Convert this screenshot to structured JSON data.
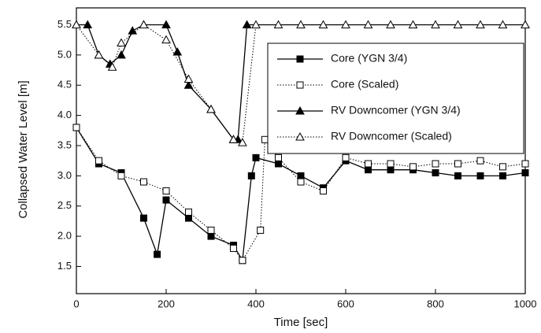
{
  "chart_data": {
    "type": "line",
    "xlabel": "Time [sec]",
    "ylabel": "Collapsed Water Level [m]",
    "xlim": [
      0,
      1000
    ],
    "xticks": [
      0,
      200,
      400,
      600,
      800,
      1000
    ],
    "ylim": [
      1.05,
      5.78
    ],
    "yticks": [
      1.5,
      {
        "value": 2,
        "label": "2.0"
      },
      2.5,
      {
        "value": 3,
        "label": "3.0"
      },
      3.5,
      {
        "value": 4,
        "label": "4.0"
      },
      4.5,
      {
        "value": 5,
        "label": "5.0"
      },
      5.5
    ],
    "legend": "upper right",
    "series": [
      {
        "name": "Core (YGN 3/4)",
        "color": "#000000",
        "dashed": false,
        "marker": "square",
        "filled": true,
        "x": [
          0,
          50,
          100,
          150,
          180,
          200,
          250,
          300,
          350,
          370,
          390,
          400,
          450,
          500,
          550,
          600,
          650,
          700,
          750,
          800,
          850,
          900,
          950,
          1000
        ],
        "values": [
          3.8,
          3.2,
          3.05,
          2.3,
          1.7,
          2.6,
          2.3,
          2.0,
          1.85,
          1.6,
          3.0,
          3.3,
          3.2,
          3.0,
          2.8,
          3.25,
          3.1,
          3.1,
          3.1,
          3.05,
          3.0,
          3.0,
          3.0,
          3.05
        ]
      },
      {
        "name": "Core (Scaled)",
        "color": "#000000",
        "dashed": true,
        "marker": "square",
        "filled": false,
        "x": [
          0,
          50,
          100,
          150,
          200,
          250,
          300,
          350,
          370,
          410,
          420,
          450,
          500,
          550,
          600,
          650,
          700,
          750,
          800,
          850,
          900,
          950,
          1000
        ],
        "values": [
          3.8,
          3.25,
          3.0,
          2.9,
          2.75,
          2.4,
          2.1,
          1.8,
          1.6,
          2.1,
          3.6,
          3.3,
          2.9,
          2.75,
          3.3,
          3.2,
          3.2,
          3.15,
          3.2,
          3.2,
          3.25,
          3.15,
          3.2
        ]
      },
      {
        "name": "RV Downcomer (YGN 3/4)",
        "color": "#000000",
        "dashed": false,
        "marker": "triangle",
        "filled": true,
        "x": [
          0,
          25,
          50,
          75,
          100,
          125,
          150,
          200,
          225,
          250,
          300,
          350,
          360,
          380,
          1000
        ],
        "values": [
          5.5,
          5.5,
          5.0,
          4.85,
          5.0,
          5.4,
          5.5,
          5.5,
          5.05,
          4.5,
          4.1,
          3.6,
          3.6,
          5.5,
          5.5
        ]
      },
      {
        "name": "RV Downcomer (Scaled)",
        "color": "#000000",
        "dashed": true,
        "marker": "triangle",
        "filled": false,
        "x": [
          0,
          50,
          80,
          100,
          150,
          200,
          250,
          300,
          350,
          370,
          400,
          450,
          500,
          550,
          600,
          650,
          700,
          750,
          800,
          850,
          900,
          950,
          1000
        ],
        "values": [
          5.5,
          5.0,
          4.8,
          5.2,
          5.5,
          5.25,
          4.6,
          4.1,
          3.6,
          3.55,
          5.5,
          5.5,
          5.5,
          5.5,
          5.5,
          5.5,
          5.5,
          5.5,
          5.5,
          5.5,
          5.5,
          5.5,
          5.5
        ]
      }
    ]
  }
}
